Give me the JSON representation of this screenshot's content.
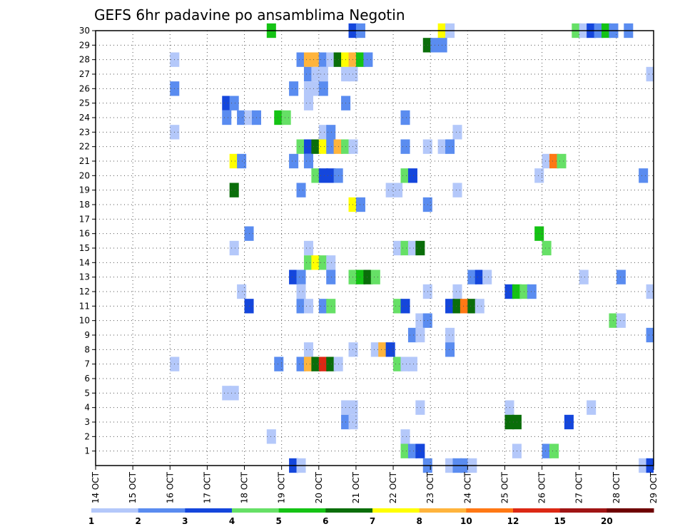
{
  "chart_data": {
    "type": "heatmap",
    "title": "GEFS 6hr padavine po ansamblima Negotin",
    "xlabel": "",
    "ylabel": "",
    "x_tick_labels": [
      "14 OCT",
      "15 OCT",
      "16 OCT",
      "17 OCT",
      "18 OCT",
      "19 OCT",
      "20 OCT",
      "21 OCT",
      "22 OCT",
      "23 OCT",
      "24 OCT",
      "25 OCT",
      "26 OCT",
      "27 OCT",
      "28 OCT",
      "29 OCT"
    ],
    "x_range_days": [
      0,
      15
    ],
    "x_step_days": 0.25,
    "y_tick_labels": [
      "1",
      "2",
      "3",
      "4",
      "5",
      "6",
      "7",
      "8",
      "9",
      "10",
      "11",
      "12",
      "13",
      "14",
      "15",
      "16",
      "17",
      "18",
      "19",
      "20",
      "21",
      "22",
      "23",
      "24",
      "25",
      "26",
      "27",
      "28",
      "29",
      "30"
    ],
    "y_range": [
      0,
      30
    ],
    "grid": true,
    "colorbar": {
      "labels": [
        "1",
        "2",
        "3",
        "4",
        "5",
        "6",
        "7",
        "8",
        "10",
        "12",
        "15",
        "20"
      ],
      "colors": [
        "#b4c8fa",
        "#5a8cf0",
        "#1446dc",
        "#66e066",
        "#14c314",
        "#0a6e0a",
        "#ffff00",
        "#ffb43c",
        "#ff7814",
        "#dc2814",
        "#a01414",
        "#6e0000"
      ]
    },
    "cells": [
      [
        30,
        4.6,
        5
      ],
      [
        30,
        6.8,
        3
      ],
      [
        30,
        7.0,
        2
      ],
      [
        30,
        9.2,
        7
      ],
      [
        30,
        9.4,
        1
      ],
      [
        30,
        12.8,
        4
      ],
      [
        30,
        13.0,
        1
      ],
      [
        30,
        13.2,
        3
      ],
      [
        30,
        13.4,
        2
      ],
      [
        30,
        13.6,
        5
      ],
      [
        30,
        13.8,
        2
      ],
      [
        30,
        14.2,
        2
      ],
      [
        29,
        8.8,
        6
      ],
      [
        29,
        9.0,
        2
      ],
      [
        29,
        9.2,
        2
      ],
      [
        28,
        2.0,
        1
      ],
      [
        28,
        5.4,
        2
      ],
      [
        28,
        5.6,
        8
      ],
      [
        28,
        5.8,
        8
      ],
      [
        28,
        6.0,
        2
      ],
      [
        28,
        6.2,
        1
      ],
      [
        28,
        6.4,
        6
      ],
      [
        28,
        6.6,
        7
      ],
      [
        28,
        6.8,
        8
      ],
      [
        28,
        7.0,
        5
      ],
      [
        28,
        7.2,
        2
      ],
      [
        27,
        5.6,
        2
      ],
      [
        27,
        5.8,
        1
      ],
      [
        27,
        6.0,
        1
      ],
      [
        27,
        6.6,
        1
      ],
      [
        27,
        6.8,
        1
      ],
      [
        27,
        14.8,
        1
      ],
      [
        27,
        15.0,
        1
      ],
      [
        27,
        15.0,
        3
      ],
      [
        26,
        2.0,
        2
      ],
      [
        26,
        5.2,
        2
      ],
      [
        26,
        5.6,
        1
      ],
      [
        26,
        5.8,
        1
      ],
      [
        26,
        6.0,
        2
      ],
      [
        25,
        3.4,
        3
      ],
      [
        25,
        3.6,
        2
      ],
      [
        25,
        5.6,
        1
      ],
      [
        25,
        6.6,
        2
      ],
      [
        24,
        3.4,
        2
      ],
      [
        24,
        3.8,
        2
      ],
      [
        24,
        4.0,
        1
      ],
      [
        24,
        4.2,
        2
      ],
      [
        24,
        4.8,
        5
      ],
      [
        24,
        5.0,
        4
      ],
      [
        24,
        8.2,
        2
      ],
      [
        23,
        2.0,
        1
      ],
      [
        23,
        6.0,
        1
      ],
      [
        23,
        6.2,
        2
      ],
      [
        23,
        9.6,
        1
      ],
      [
        22,
        5.4,
        4
      ],
      [
        22,
        5.6,
        3
      ],
      [
        22,
        5.8,
        6
      ],
      [
        22,
        6.0,
        7
      ],
      [
        22,
        6.2,
        2
      ],
      [
        22,
        6.4,
        8
      ],
      [
        22,
        6.6,
        4
      ],
      [
        22,
        6.8,
        1
      ],
      [
        22,
        8.2,
        2
      ],
      [
        22,
        8.8,
        1
      ],
      [
        22,
        9.2,
        1
      ],
      [
        22,
        9.4,
        2
      ],
      [
        21,
        3.6,
        7
      ],
      [
        21,
        3.8,
        2
      ],
      [
        21,
        5.2,
        2
      ],
      [
        21,
        5.6,
        2
      ],
      [
        21,
        12.0,
        1
      ],
      [
        21,
        12.2,
        9
      ],
      [
        21,
        12.4,
        4
      ],
      [
        20,
        5.8,
        4
      ],
      [
        20,
        6.0,
        3
      ],
      [
        20,
        6.2,
        3
      ],
      [
        20,
        6.4,
        2
      ],
      [
        20,
        8.2,
        4
      ],
      [
        20,
        8.4,
        3
      ],
      [
        20,
        11.8,
        1
      ],
      [
        20,
        14.6,
        2
      ],
      [
        19,
        3.6,
        6
      ],
      [
        19,
        5.4,
        2
      ],
      [
        19,
        7.8,
        1
      ],
      [
        19,
        8.0,
        1
      ],
      [
        19,
        9.6,
        1
      ],
      [
        18,
        6.8,
        7
      ],
      [
        18,
        7.0,
        2
      ],
      [
        18,
        8.8,
        2
      ],
      [
        16,
        4.0,
        2
      ],
      [
        16,
        11.8,
        5
      ],
      [
        15,
        3.6,
        1
      ],
      [
        15,
        5.6,
        1
      ],
      [
        15,
        8.0,
        1
      ],
      [
        15,
        8.2,
        4
      ],
      [
        15,
        8.4,
        1
      ],
      [
        15,
        8.6,
        6
      ],
      [
        15,
        12.0,
        4
      ],
      [
        14,
        5.6,
        4
      ],
      [
        14,
        5.8,
        7
      ],
      [
        14,
        6.0,
        4
      ],
      [
        14,
        6.2,
        1
      ],
      [
        13,
        5.2,
        3
      ],
      [
        13,
        5.4,
        2
      ],
      [
        13,
        6.2,
        2
      ],
      [
        13,
        6.8,
        4
      ],
      [
        13,
        7.0,
        5
      ],
      [
        13,
        7.2,
        6
      ],
      [
        13,
        7.4,
        4
      ],
      [
        13,
        10.0,
        2
      ],
      [
        13,
        10.2,
        3
      ],
      [
        13,
        10.4,
        1
      ],
      [
        13,
        13.0,
        1
      ],
      [
        13,
        14.0,
        2
      ],
      [
        12,
        3.8,
        1
      ],
      [
        12,
        5.4,
        1
      ],
      [
        12,
        8.8,
        1
      ],
      [
        12,
        9.6,
        1
      ],
      [
        12,
        11.0,
        3
      ],
      [
        12,
        11.2,
        5
      ],
      [
        12,
        11.4,
        4
      ],
      [
        12,
        11.6,
        2
      ],
      [
        12,
        14.8,
        1
      ],
      [
        11,
        4.0,
        3
      ],
      [
        11,
        5.4,
        2
      ],
      [
        11,
        5.6,
        1
      ],
      [
        11,
        6.0,
        2
      ],
      [
        11,
        6.2,
        4
      ],
      [
        11,
        8.0,
        4
      ],
      [
        11,
        8.2,
        3
      ],
      [
        11,
        9.4,
        3
      ],
      [
        11,
        9.6,
        6
      ],
      [
        11,
        9.8,
        9
      ],
      [
        11,
        10.0,
        6
      ],
      [
        11,
        10.2,
        1
      ],
      [
        10,
        8.6,
        1
      ],
      [
        10,
        8.8,
        2
      ],
      [
        10,
        13.8,
        4
      ],
      [
        10,
        14.0,
        1
      ],
      [
        9,
        8.4,
        2
      ],
      [
        9,
        8.6,
        1
      ],
      [
        9,
        9.4,
        1
      ],
      [
        9,
        14.8,
        2
      ],
      [
        8,
        5.6,
        1
      ],
      [
        8,
        6.8,
        1
      ],
      [
        8,
        7.4,
        1
      ],
      [
        8,
        7.6,
        8
      ],
      [
        8,
        7.8,
        3
      ],
      [
        8,
        9.4,
        2
      ],
      [
        7,
        2.0,
        1
      ],
      [
        7,
        4.8,
        2
      ],
      [
        7,
        5.4,
        2
      ],
      [
        7,
        5.6,
        8
      ],
      [
        7,
        5.8,
        6
      ],
      [
        7,
        6.0,
        10
      ],
      [
        7,
        6.2,
        6
      ],
      [
        7,
        6.4,
        1
      ],
      [
        7,
        8.0,
        4
      ],
      [
        7,
        8.2,
        1
      ],
      [
        7,
        8.4,
        1
      ],
      [
        7,
        15.0,
        4
      ],
      [
        5,
        3.4,
        1
      ],
      [
        5,
        3.6,
        1
      ],
      [
        4,
        6.6,
        1
      ],
      [
        4,
        6.8,
        1
      ],
      [
        4,
        8.6,
        1
      ],
      [
        4,
        11.0,
        1
      ],
      [
        4,
        13.2,
        1
      ],
      [
        3,
        6.6,
        2
      ],
      [
        3,
        6.8,
        1
      ],
      [
        3,
        11.0,
        6
      ],
      [
        3,
        11.2,
        6
      ],
      [
        3,
        12.6,
        3
      ],
      [
        2,
        4.6,
        1
      ],
      [
        2,
        8.2,
        1
      ],
      [
        1,
        8.2,
        4
      ],
      [
        1,
        8.4,
        2
      ],
      [
        1,
        8.6,
        3
      ],
      [
        1,
        11.2,
        1
      ],
      [
        1,
        12.0,
        2
      ],
      [
        1,
        12.2,
        4
      ],
      [
        0,
        5.2,
        3
      ],
      [
        0,
        5.4,
        1
      ],
      [
        0,
        8.8,
        2
      ],
      [
        0,
        9.4,
        1
      ],
      [
        0,
        9.6,
        2
      ],
      [
        0,
        9.8,
        2
      ],
      [
        0,
        10.0,
        1
      ],
      [
        0,
        14.6,
        1
      ],
      [
        0,
        14.8,
        3
      ],
      [
        0,
        15.0,
        1
      ]
    ]
  }
}
